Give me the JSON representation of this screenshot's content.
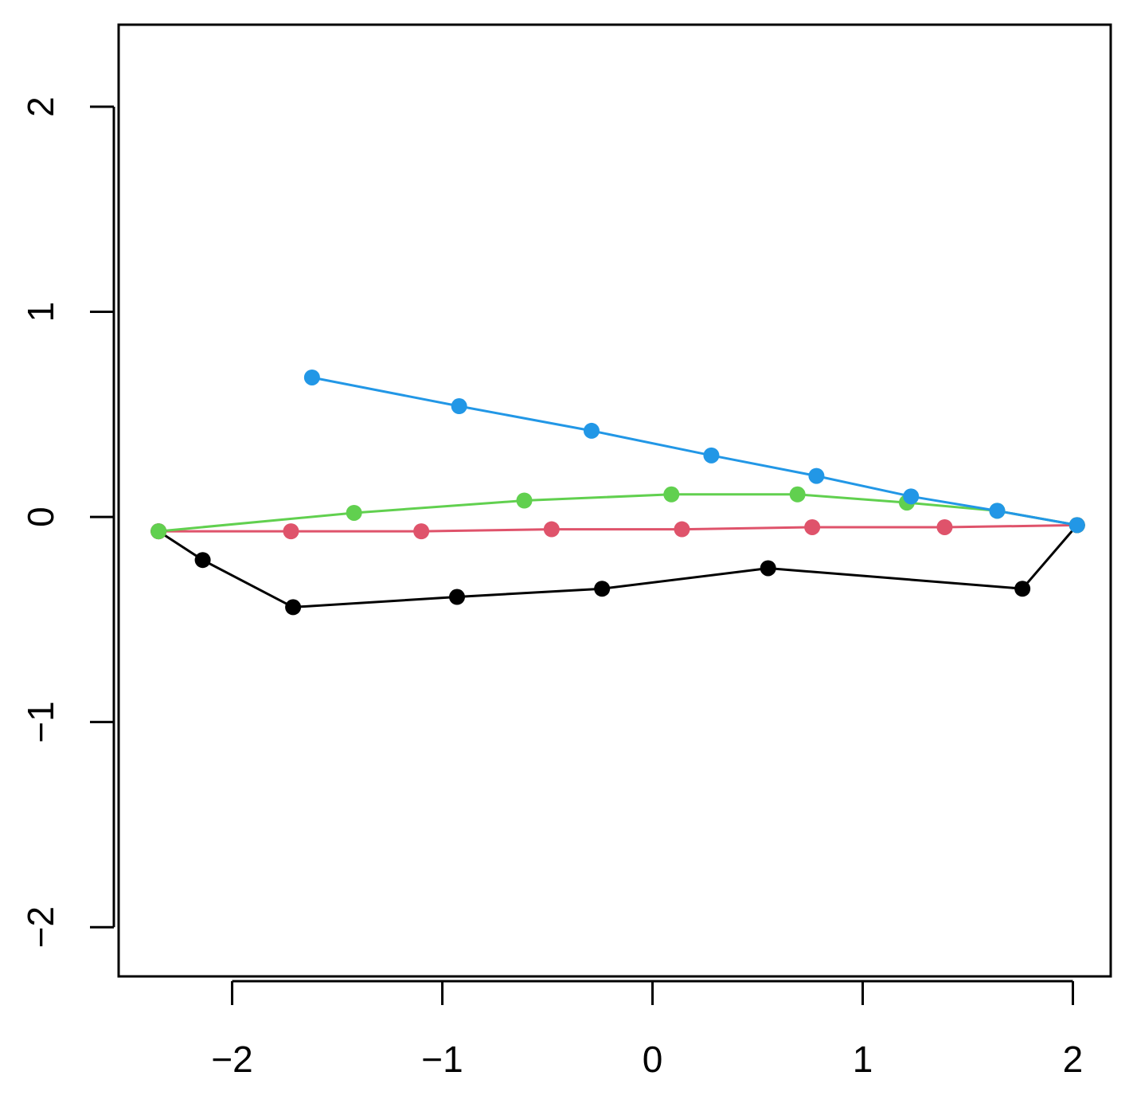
{
  "chart_data": {
    "type": "line",
    "title": "",
    "xlabel": "",
    "ylabel": "",
    "xlim": [
      -2.54,
      2.18
    ],
    "ylim": [
      -2.24,
      2.4
    ],
    "x_ticks": [
      -2,
      -1,
      0,
      1,
      2
    ],
    "y_ticks": [
      -2,
      -1,
      0,
      1,
      2
    ],
    "x_tick_labels": [
      "−2",
      "−1",
      "0",
      "1",
      "2"
    ],
    "y_tick_labels": [
      "−2",
      "−1",
      "0",
      "1",
      "2"
    ],
    "grid": false,
    "legend": "none",
    "series": [
      {
        "color": "#000000",
        "x": [
          -2.35,
          -2.14,
          -1.71,
          -0.93,
          -0.24,
          0.55,
          1.76,
          2.02
        ],
        "y": [
          -0.07,
          -0.21,
          -0.44,
          -0.39,
          -0.35,
          -0.25,
          -0.35,
          -0.04
        ]
      },
      {
        "color": "#DF536B",
        "x": [
          -2.35,
          -1.72,
          -1.1,
          -0.48,
          0.14,
          0.76,
          1.39,
          2.02
        ],
        "y": [
          -0.07,
          -0.07,
          -0.07,
          -0.06,
          -0.06,
          -0.05,
          -0.05,
          -0.04
        ]
      },
      {
        "color": "#61D04F",
        "x": [
          -2.35,
          -1.42,
          -0.61,
          0.09,
          0.69,
          1.21,
          1.64,
          2.02
        ],
        "y": [
          -0.07,
          0.02,
          0.08,
          0.11,
          0.11,
          0.07,
          0.03,
          -0.04
        ]
      },
      {
        "color": "#2297E6",
        "x": [
          -1.62,
          -0.92,
          -0.29,
          0.28,
          0.78,
          1.23,
          1.64,
          2.02
        ],
        "y": [
          0.68,
          0.54,
          0.42,
          0.3,
          0.2,
          0.1,
          0.03,
          -0.04
        ]
      }
    ]
  }
}
